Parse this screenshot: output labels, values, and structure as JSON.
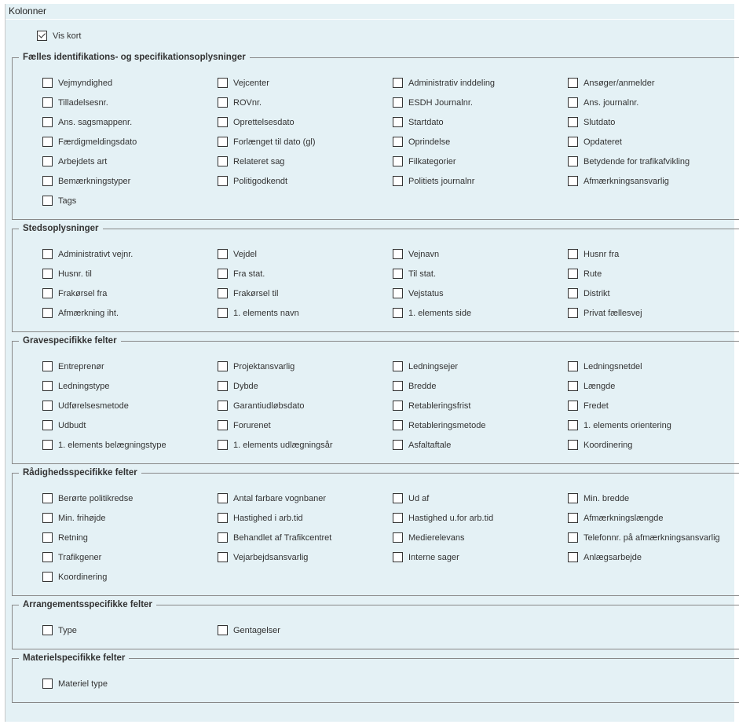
{
  "panel": {
    "title": "Kolonner",
    "vis_kort": {
      "label": "Vis kort",
      "checked": true
    }
  },
  "sections": [
    {
      "title": "Fælles identifikations- og specifikationsoplysninger",
      "items": [
        "Vejmyndighed",
        "Vejcenter",
        "Administrativ inddeling",
        "Ansøger/anmelder",
        "Tilladelsesnr.",
        "ROVnr.",
        "ESDH Journalnr.",
        "Ans. journalnr.",
        "Ans. sagsmappenr.",
        "Oprettelsesdato",
        "Startdato",
        "Slutdato",
        "Færdigmeldingsdato",
        "Forlænget til dato (gl)",
        "Oprindelse",
        "Opdateret",
        "Arbejdets art",
        "Relateret sag",
        "Filkategorier",
        "Betydende for trafikafvikling",
        "Bemærkningstyper",
        "Politigodkendt",
        "Politiets journalnr",
        "Afmærkningsansvarlig",
        "Tags"
      ]
    },
    {
      "title": "Stedsoplysninger",
      "items": [
        "Administrativt vejnr.",
        "Vejdel",
        "Vejnavn",
        "Husnr fra",
        "Husnr. til",
        "Fra stat.",
        "Til stat.",
        "Rute",
        "Frakørsel fra",
        "Frakørsel til",
        "Vejstatus",
        "Distrikt",
        "Afmærkning iht.",
        "1. elements navn",
        "1. elements side",
        "Privat fællesvej"
      ]
    },
    {
      "title": "Gravespecifikke felter",
      "items": [
        "Entreprenør",
        "Projektansvarlig",
        "Ledningsejer",
        "Ledningsnetdel",
        "Ledningstype",
        "Dybde",
        "Bredde",
        "Længde",
        "Udførelsesmetode",
        "Garantiudløbsdato",
        "Retableringsfrist",
        "Fredet",
        "Udbudt",
        "Forurenet",
        "Retableringsmetode",
        "1. elements orientering",
        "1. elements belægningstype",
        "1. elements udlægningsår",
        "Asfaltaftale",
        "Koordinering"
      ]
    },
    {
      "title": "Rådighedsspecifikke felter",
      "items": [
        "Berørte politikredse",
        "Antal farbare vognbaner",
        "Ud af",
        "Min. bredde",
        "Min. frihøjde",
        "Hastighed i arb.tid",
        "Hastighed u.for arb.tid",
        "Afmærkningslængde",
        "Retning",
        "Behandlet af Trafikcentret",
        "Medierelevans",
        "Telefonnr. på afmærkningsansvarlig",
        "Trafikgener",
        "Vejarbejdsansvarlig",
        "Interne sager",
        "Anlægsarbejde",
        "Koordinering"
      ]
    },
    {
      "title": "Arrangementsspecifikke felter",
      "items": [
        "Type",
        "Gentagelser"
      ]
    },
    {
      "title": "Materielspecifikke felter",
      "items": [
        "Materiel type"
      ]
    }
  ]
}
